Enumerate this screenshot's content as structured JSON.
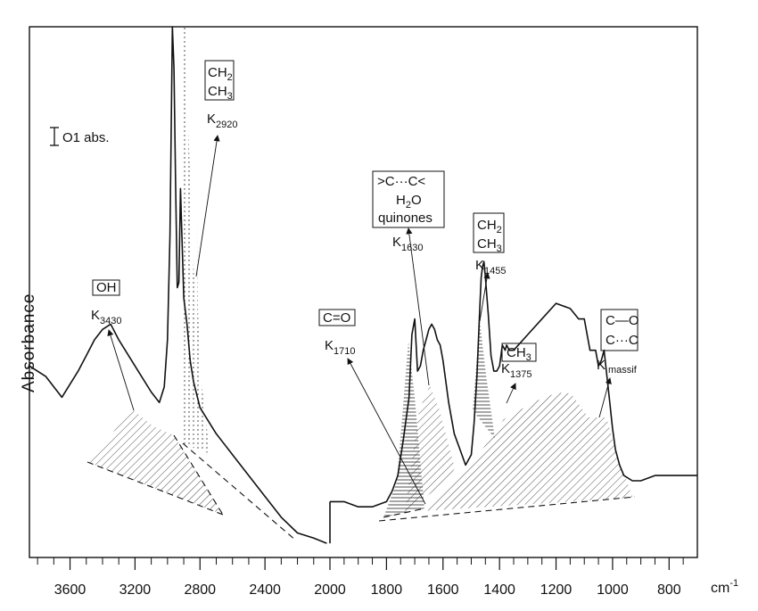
{
  "chart_data": {
    "type": "line",
    "title": "",
    "xlabel": "",
    "ylabel": "Absorbance",
    "x_unit": "cm",
    "x_unit_exp": "-1",
    "x_reversed": true,
    "xlim": [
      3850,
      700
    ],
    "ylim": [
      0,
      100
    ],
    "grid": false,
    "x_ticks": [
      3600,
      3200,
      2800,
      2400,
      2000,
      1800,
      1600,
      1400,
      1200,
      1000,
      800
    ],
    "x_tick_labels": [
      "3600",
      "3200",
      "2800",
      "2400",
      "2000",
      "1800",
      "1600",
      "1400",
      "1200",
      "1000",
      "800"
    ],
    "scale_bar": {
      "label": "O1 abs."
    },
    "series": [
      {
        "x": [
          3850,
          3750,
          3650,
          3550,
          3500,
          3450,
          3400,
          3350,
          3300,
          3200,
          3100,
          3050,
          3020,
          3000,
          2985,
          2970,
          2960,
          2950,
          2940,
          2930,
          2920,
          2900,
          2880,
          2860,
          2840,
          2800,
          2700,
          2600,
          2500,
          2400,
          2300,
          2200,
          2100,
          2020
        ],
        "y": [
          35,
          33,
          29,
          34,
          37,
          40,
          42,
          43,
          40,
          35,
          30,
          28,
          31,
          40,
          60,
          100,
          92,
          70,
          50,
          51,
          69,
          48,
          43,
          36,
          32,
          27,
          22,
          18,
          14,
          10,
          6,
          3,
          2,
          1
        ]
      },
      {
        "x": [
          2000,
          1950,
          1900,
          1850,
          1800,
          1780,
          1760,
          1740,
          1720,
          1710,
          1700,
          1690,
          1680,
          1670,
          1660,
          1650,
          1640,
          1630,
          1620,
          1610,
          1600,
          1580,
          1560,
          1540,
          1520,
          1500,
          1490,
          1480,
          1470,
          1465,
          1460,
          1455,
          1450,
          1440,
          1430,
          1420,
          1410,
          1400,
          1390,
          1380,
          1375,
          1365,
          1350,
          1300,
          1250,
          1200,
          1150,
          1120,
          1100,
          1080,
          1060,
          1050,
          1040,
          1030,
          1020,
          1010,
          1000,
          990,
          975,
          960,
          930,
          900,
          850,
          800,
          750,
          700
        ],
        "y": [
          9,
          9,
          8,
          8,
          9,
          11,
          14,
          21,
          29,
          41,
          44,
          34,
          35,
          38,
          40,
          42,
          43,
          42,
          40,
          39,
          36,
          28,
          22,
          19,
          16,
          18,
          24,
          33,
          46,
          52,
          54,
          55,
          52,
          45,
          37,
          34,
          34,
          35,
          39,
          38,
          39,
          38,
          38,
          41,
          44,
          47,
          46,
          44,
          44,
          38,
          38,
          35,
          36,
          38,
          33,
          28,
          23,
          19,
          16,
          14,
          13,
          13,
          14,
          14,
          14,
          14
        ]
      }
    ],
    "annotations": [
      {
        "box": [
          "OH"
        ],
        "label": "K",
        "sub": "3430"
      },
      {
        "box": [
          "CH",
          "CH"
        ],
        "box_subs": [
          "2",
          "3"
        ],
        "label": "K",
        "sub": "2920"
      },
      {
        "box": [
          ">C···C<",
          "H",
          "quinones"
        ],
        "box_mid": {
          "main": "H",
          "sub": "2",
          "after": "O"
        },
        "label": "K",
        "sub": "1630"
      },
      {
        "box": [
          "CH",
          "CH"
        ],
        "box_subs": [
          "2",
          "3"
        ],
        "label": "K",
        "sub": "1455"
      },
      {
        "box": [
          "C=O"
        ],
        "label": "K",
        "sub": "1710"
      },
      {
        "box": [
          "CH"
        ],
        "box_subs": [
          "3"
        ],
        "label": "K",
        "sub": "1375"
      },
      {
        "box": [
          "C—O",
          "C···C"
        ],
        "label": "K",
        "sub": "massif"
      }
    ]
  }
}
